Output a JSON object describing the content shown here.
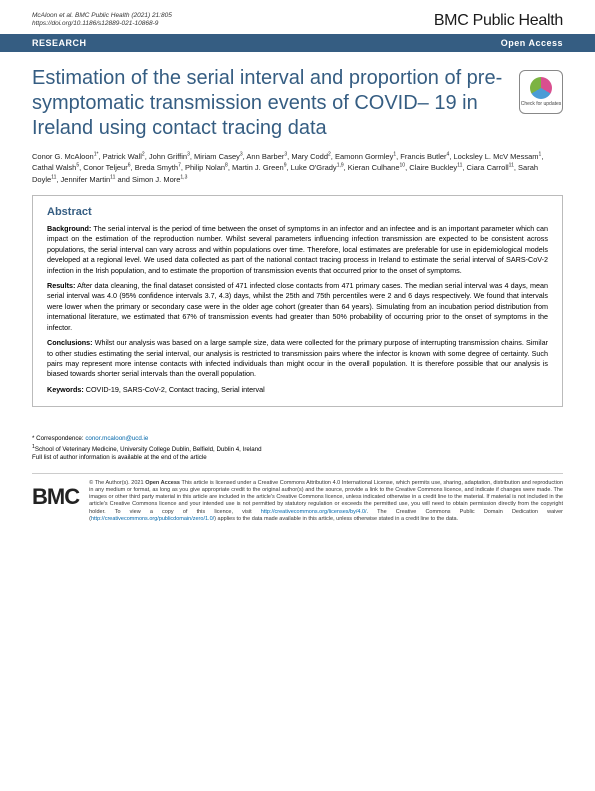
{
  "header": {
    "citation_line1": "McAloon et al. BMC Public Health        (2021) 21:805",
    "citation_line2": "https://doi.org/10.1186/s12889-021-10868-9",
    "journal": "BMC Public Health"
  },
  "banner": {
    "left": "RESEARCH",
    "right": "Open Access"
  },
  "title": "Estimation of the serial interval and proportion of pre-symptomatic transmission events of COVID– 19 in Ireland using contact tracing data",
  "updates_badge": "Check for updates",
  "authors_html": "Conor G. McAloon<sup>1*</sup>, Patrick Wall<sup>2</sup>, John Griffin<sup>3</sup>, Miriam Casey<sup>3</sup>, Ann Barber<sup>3</sup>, Mary Codd<sup>2</sup>, Eamonn Gormley<sup>1</sup>, Francis Butler<sup>4</sup>, Locksley L. McV Messam<sup>1</sup>, Cathal Walsh<sup>5</sup>, Conor Teljeur<sup>6</sup>, Breda Smyth<sup>7</sup>, Philip Nolan<sup>8</sup>, Martin J. Green<sup>9</sup>, Luke O'Grady<sup>1,9</sup>, Kieran Culhane<sup>10</sup>, Claire Buckley<sup>11</sup>, Ciara Carroll<sup>11</sup>, Sarah Doyle<sup>11</sup>, Jennifer Martin<sup>11</sup> and Simon J. More<sup>1,3</sup>",
  "abstract": {
    "heading": "Abstract",
    "background": {
      "label": "Background:",
      "text": " The serial interval is the period of time between the onset of symptoms in an infector and an infectee and is an important parameter which can impact on the estimation of the reproduction number. Whilst several parameters influencing infection transmission are expected to be consistent across populations, the serial interval can vary across and within populations over time. Therefore, local estimates are preferable for use in epidemiological models developed at a regional level. We used data collected as part of the national contact tracing process in Ireland to estimate the serial interval of SARS-CoV-2 infection in the Irish population, and to estimate the proportion of transmission events that occurred prior to the onset of symptoms."
    },
    "results": {
      "label": "Results:",
      "text": " After data cleaning, the final dataset consisted of 471 infected close contacts from 471 primary cases. The median serial interval was 4 days, mean serial interval was 4.0 (95% confidence intervals 3.7, 4.3) days, whilst the 25th and 75th percentiles were 2 and 6 days respectively. We found that intervals were lower when the primary or secondary case were in the older age cohort (greater than 64 years). Simulating from an incubation period distribution from international literature, we estimated that 67% of transmission events had greater than 50% probability of occurring prior to the onset of symptoms in the infector."
    },
    "conclusions": {
      "label": "Conclusions:",
      "text": " Whilst our analysis was based on a large sample size, data were collected for the primary purpose of interrupting transmission chains. Similar to other studies estimating the serial interval, our analysis is restricted to transmission pairs where the infector is known with some degree of certainty. Such pairs may represent more intense contacts with infected individuals than might occur in the overall population. It is therefore possible that our analysis is biased towards shorter serial intervals than the overall population."
    },
    "keywords": {
      "label": "Keywords:",
      "text": " COVID-19, SARS-CoV-2, Contact tracing, Serial interval"
    }
  },
  "correspondence": {
    "label": "* Correspondence:",
    "email": "conor.mcaloon@ucd.ie",
    "affiliation": "School of Veterinary Medicine, University College Dublin, Belfield, Dublin 4, Ireland",
    "note": "Full list of author information is available at the end of the article"
  },
  "license": {
    "logo": "BMC",
    "text_parts": [
      "© The Author(s). 2021 ",
      "Open Access",
      " This article is licensed under a Creative Commons Attribution 4.0 International License, which permits use, sharing, adaptation, distribution and reproduction in any medium or format, as long as you give appropriate credit to the original author(s) and the source, provide a link to the Creative Commons licence, and indicate if changes were made. The images or other third party material in this article are included in the article's Creative Commons licence, unless indicated otherwise in a credit line to the material. If material is not included in the article's Creative Commons licence and your intended use is not permitted by statutory regulation or exceeds the permitted use, you will need to obtain permission directly from the copyright holder. To view a copy of this licence, visit ",
      "http://creativecommons.org/licenses/by/4.0/",
      ". The Creative Commons Public Domain Dedication waiver (",
      "http://creativecommons.org/publicdomain/zero/1.0/",
      ") applies to the data made available in this article, unless otherwise stated in a credit line to the data."
    ]
  }
}
